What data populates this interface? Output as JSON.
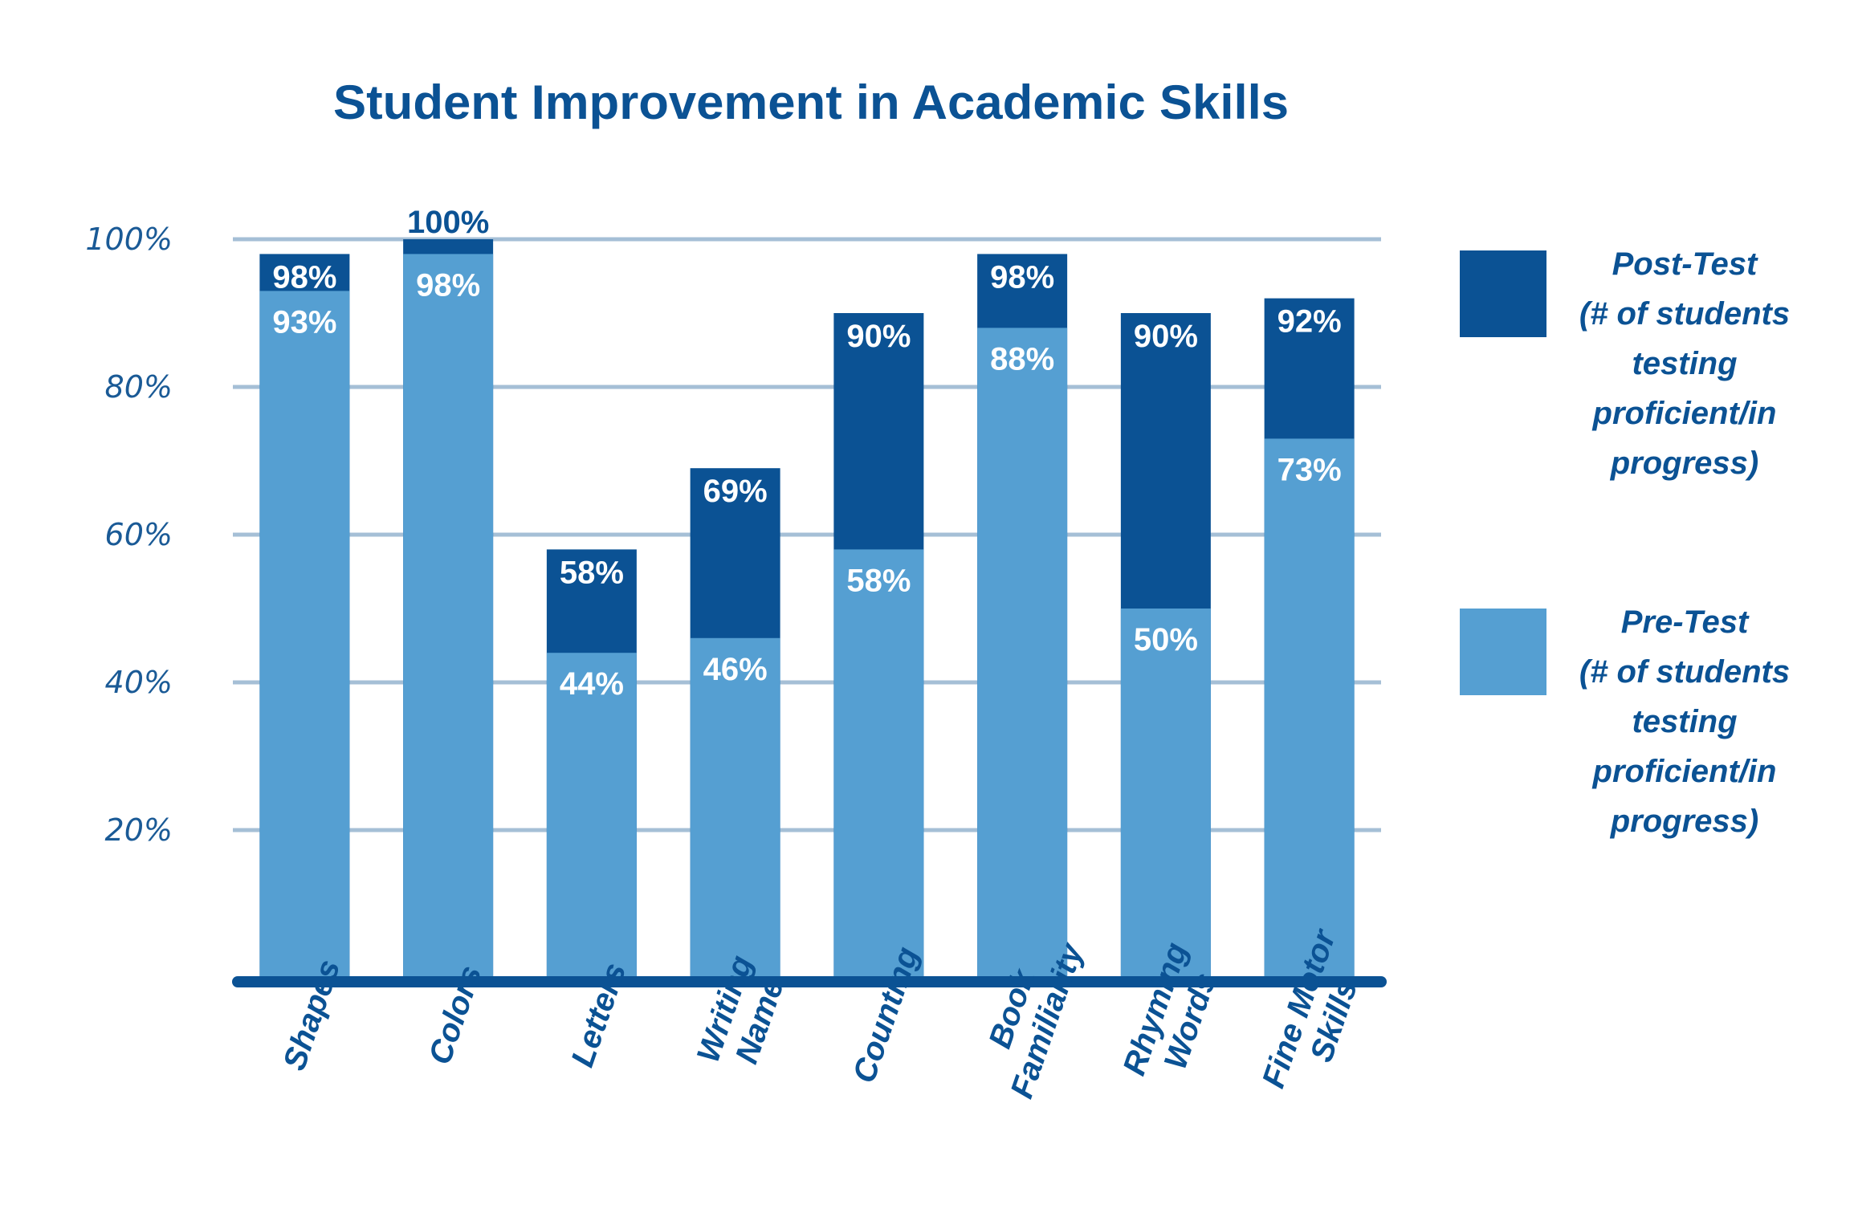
{
  "chart_data": {
    "type": "bar",
    "title": "Student Improvement in Academic Skills",
    "categories": [
      [
        "Shapes"
      ],
      [
        "Colors"
      ],
      [
        "Letters"
      ],
      [
        "Writing",
        "Name"
      ],
      [
        "Counting"
      ],
      [
        "Book",
        "Familiarity"
      ],
      [
        "Rhyming",
        "Words"
      ],
      [
        "Fine Motor",
        "Skills"
      ]
    ],
    "series": [
      {
        "name": "Pre-Test",
        "legend_lines": [
          "Pre-Test",
          "(# of students",
          "testing",
          "proficient/in",
          "progress)"
        ],
        "color": "#559fd2",
        "values": [
          93,
          98,
          44,
          46,
          58,
          88,
          50,
          73
        ],
        "labels": [
          "93%",
          "98%",
          "44%",
          "46%",
          "58%",
          "88%",
          "50%",
          "73%"
        ]
      },
      {
        "name": "Post-Test",
        "legend_lines": [
          "Post-Test",
          "(# of students",
          "testing",
          "proficient/in",
          "progress)"
        ],
        "color": "#0b5294",
        "values": [
          98,
          100,
          58,
          69,
          90,
          98,
          90,
          92
        ],
        "labels": [
          "98%",
          "100%",
          "58%",
          "69%",
          "90%",
          "98%",
          "90%",
          "92%"
        ]
      }
    ],
    "y_ticks": [
      {
        "value": 20,
        "label": "20%"
      },
      {
        "value": 40,
        "label": "40%"
      },
      {
        "value": 60,
        "label": "60%"
      },
      {
        "value": 80,
        "label": "80%"
      },
      {
        "value": 100,
        "label": "100%"
      }
    ],
    "ylim": [
      0,
      100
    ],
    "grid": true,
    "legend_position": "right",
    "gridline_color": "#a5bfd6",
    "axis_color": "#0b5294"
  }
}
